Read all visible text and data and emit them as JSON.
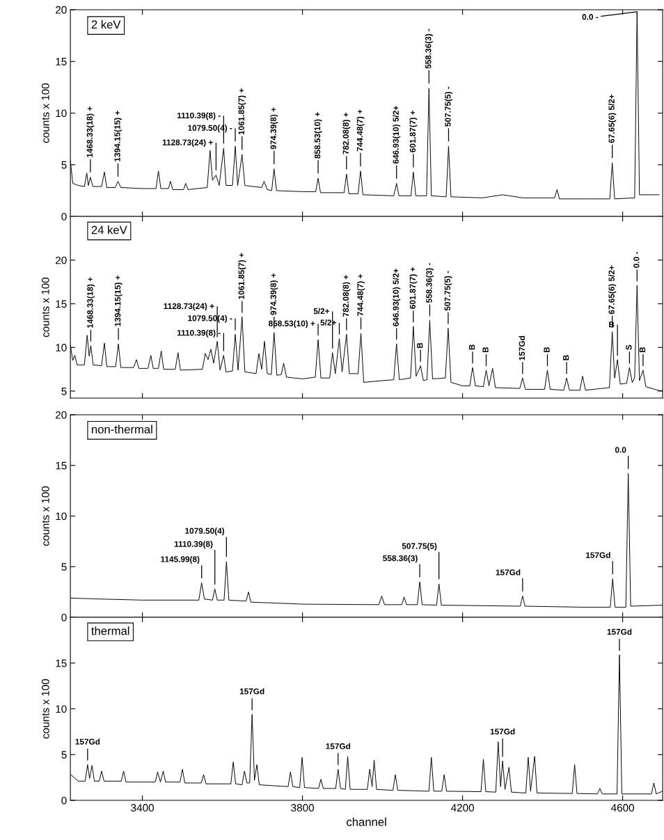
{
  "chart_data": [
    {
      "type": "line",
      "title": "2 keV",
      "ylabel": "counts x 100",
      "xlim": [
        3220,
        4700
      ],
      "ylim": [
        0,
        20
      ],
      "xticks": [
        3400,
        3800,
        4200,
        4600
      ],
      "yticks": [
        0,
        5,
        10,
        15,
        20
      ],
      "tick_labels": "y",
      "series": [
        {
          "color": "#000000",
          "x": [
            3220,
            3226,
            3240,
            3255,
            3261,
            3265,
            3270,
            3276,
            3298,
            3305,
            3311,
            3332,
            3339,
            3346,
            3400,
            3434,
            3440,
            3446,
            3465,
            3470,
            3476,
            3503,
            3508,
            3514,
            3562,
            3569,
            3575,
            3584,
            3592,
            3603,
            3609,
            3625,
            3632,
            3638,
            3649,
            3656,
            3698,
            3704,
            3712,
            3723,
            3729,
            3735,
            3800,
            3833,
            3839,
            3845,
            3904,
            3910,
            3916,
            3939,
            3945,
            3951,
            4028,
            4035,
            4041,
            4071,
            4077,
            4083,
            4110,
            4116,
            4122,
            4159,
            4165,
            4171,
            4250,
            4300,
            4350,
            4430,
            4436,
            4442,
            4520,
            4568,
            4574,
            4580,
            4630,
            4636,
            4642,
            4691
          ],
          "values": [
            5.4,
            3.2,
            3.0,
            2.9,
            4.2,
            3.0,
            3.8,
            2.9,
            2.9,
            4.3,
            2.8,
            2.8,
            3.4,
            2.8,
            2.7,
            2.7,
            4.4,
            2.7,
            2.7,
            3.4,
            2.6,
            2.6,
            3.2,
            2.6,
            2.8,
            6.4,
            3.5,
            4.0,
            3.0,
            6.6,
            3.0,
            3.0,
            6.8,
            3.0,
            6.0,
            3.0,
            2.8,
            3.4,
            2.6,
            2.5,
            4.6,
            2.5,
            2.4,
            2.4,
            3.7,
            2.3,
            2.3,
            4.1,
            2.2,
            2.2,
            4.4,
            2.1,
            2.0,
            3.2,
            2.0,
            2.0,
            4.3,
            2.0,
            2.0,
            12.4,
            2.0,
            1.9,
            6.8,
            1.9,
            1.8,
            2.1,
            1.8,
            1.8,
            2.6,
            1.7,
            1.7,
            1.7,
            5.2,
            1.7,
            1.8,
            19.8,
            2.1,
            2.1
          ]
        }
      ],
      "annotations": [
        {
          "text": "1468.33(18) +",
          "x": 3270,
          "y": 3.8
        },
        {
          "text": "1394.15(15) +",
          "x": 3339,
          "y": 3.4
        },
        {
          "text": "1128.73(24) +",
          "x": 3584,
          "y": 4.0
        },
        {
          "text": "1110.39(8) -",
          "x": 3603,
          "y": 6.6
        },
        {
          "text": "1079.50(4) -",
          "x": 3632,
          "y": 6.8
        },
        {
          "text": "1061.85(7) +",
          "x": 3649,
          "y": 6.0
        },
        {
          "text": "974.39(8) +",
          "x": 3729,
          "y": 4.6
        },
        {
          "text": "858.53(10) +",
          "x": 3839,
          "y": 3.7
        },
        {
          "text": "782.08(8) +",
          "x": 3910,
          "y": 4.1
        },
        {
          "text": "744.48(7) +",
          "x": 3945,
          "y": 4.4
        },
        {
          "text": "646.93(10) 5/2+",
          "x": 4035,
          "y": 3.2
        },
        {
          "text": "601.87(7) +",
          "x": 4077,
          "y": 4.3
        },
        {
          "text": "558.36(3) -",
          "x": 4116,
          "y": 12.4
        },
        {
          "text": "507.75(5) -",
          "x": 4165,
          "y": 6.8
        },
        {
          "text": "67.65(6) 5/2+",
          "x": 4574,
          "y": 5.2
        },
        {
          "text": "0.0 -",
          "x": 4636,
          "y": 19.8
        }
      ]
    },
    {
      "type": "line",
      "title": "24 keV",
      "ylabel": "counts x 100",
      "xlim": [
        3220,
        4700
      ],
      "ylim": [
        4.2,
        25
      ],
      "xticks": [
        3400,
        3800,
        4200,
        4600
      ],
      "yticks": [
        5,
        10,
        15,
        20
      ],
      "tick_labels": "y",
      "series": [
        {
          "color": "#000000",
          "x": [
            3220,
            3226,
            3231,
            3237,
            3255,
            3262,
            3267,
            3271,
            3277,
            3298,
            3305,
            3311,
            3333,
            3340,
            3346,
            3378,
            3385,
            3391,
            3414,
            3421,
            3427,
            3440,
            3447,
            3453,
            3482,
            3489,
            3495,
            3550,
            3557,
            3564,
            3571,
            3578,
            3587,
            3594,
            3603,
            3609,
            3625,
            3632,
            3639,
            3649,
            3656,
            3684,
            3691,
            3698,
            3705,
            3712,
            3722,
            3729,
            3736,
            3747,
            3753,
            3760,
            3800,
            3832,
            3839,
            3846,
            3868,
            3875,
            3882,
            3892,
            3899,
            3910,
            3917,
            3939,
            3946,
            3953,
            4000,
            4028,
            4035,
            4042,
            4070,
            4077,
            4084,
            4095,
            4102,
            4111,
            4118,
            4125,
            4157,
            4164,
            4171,
            4200,
            4218,
            4225,
            4232,
            4252,
            4259,
            4266,
            4275,
            4282,
            4343,
            4350,
            4357,
            4405,
            4412,
            4419,
            4453,
            4460,
            4467,
            4493,
            4500,
            4507,
            4567,
            4574,
            4580,
            4587,
            4594,
            4610,
            4617,
            4624,
            4630,
            4636,
            4642,
            4651,
            4658,
            4688,
            4700
          ],
          "values": [
            10.3,
            8.5,
            9.1,
            8.0,
            8.0,
            11.4,
            9.0,
            10.2,
            8.0,
            7.9,
            10.5,
            7.8,
            7.8,
            10.4,
            7.7,
            7.7,
            8.6,
            7.6,
            7.6,
            9.1,
            7.6,
            7.6,
            9.6,
            7.5,
            7.5,
            9.4,
            7.4,
            7.5,
            9.3,
            8.6,
            9.8,
            8.2,
            10.7,
            7.4,
            9.1,
            7.2,
            7.3,
            11.5,
            7.4,
            13.5,
            7.2,
            7.0,
            9.3,
            7.5,
            10.7,
            7.0,
            6.9,
            11.7,
            6.8,
            6.9,
            8.2,
            6.6,
            6.4,
            6.6,
            10.9,
            6.5,
            6.5,
            9.4,
            7.0,
            11.0,
            7.2,
            11.5,
            7.0,
            7.0,
            11.6,
            6.0,
            6.2,
            6.3,
            10.4,
            6.3,
            6.5,
            12.4,
            6.7,
            7.9,
            6.2,
            6.3,
            13.1,
            6.4,
            6.5,
            12.2,
            6.0,
            5.6,
            5.6,
            7.7,
            5.6,
            5.5,
            7.4,
            5.6,
            7.6,
            5.4,
            5.3,
            6.5,
            5.2,
            5.2,
            7.4,
            5.2,
            5.1,
            6.5,
            5.1,
            5.1,
            6.7,
            5.1,
            5.4,
            11.8,
            6.5,
            8.6,
            5.8,
            5.9,
            7.7,
            6.0,
            6.5,
            17.1,
            6.2,
            7.4,
            5.5,
            5.1,
            5.0
          ]
        }
      ],
      "annotations": [
        {
          "text": "1468.33(18) +",
          "x": 3271,
          "y": 10.2
        },
        {
          "text": "1394.15(15) +",
          "x": 3340,
          "y": 10.4
        },
        {
          "text": "1128.73(24) +",
          "x": 3587,
          "y": 10.7
        },
        {
          "text": "1110.39(8) -",
          "x": 3603,
          "y": 9.1
        },
        {
          "text": "1079.50(4) -",
          "x": 3632,
          "y": 11.5
        },
        {
          "text": "1061.85(7) +",
          "x": 3649,
          "y": 13.5
        },
        {
          "text": "974.39(8) +",
          "x": 3729,
          "y": 11.7
        },
        {
          "text": "858.53(10) +",
          "x": 3839,
          "y": 10.9
        },
        {
          "text": "5/2+",
          "x": 3875,
          "y": 9.4
        },
        {
          "text": "5/2+",
          "x": 3892,
          "y": 11.0
        },
        {
          "text": "782.08(8) +",
          "x": 3910,
          "y": 11.5
        },
        {
          "text": "744.48(7) +",
          "x": 3946,
          "y": 11.6
        },
        {
          "text": "646.93(10) 5/2+",
          "x": 4035,
          "y": 10.4
        },
        {
          "text": "601.87(7) +",
          "x": 4077,
          "y": 12.4
        },
        {
          "text": "B",
          "x": 4095,
          "y": 7.9
        },
        {
          "text": "558.36(3) -",
          "x": 4118,
          "y": 13.1
        },
        {
          "text": "507.75(5) -",
          "x": 4164,
          "y": 12.2
        },
        {
          "text": "B",
          "x": 4225,
          "y": 7.7
        },
        {
          "text": "B",
          "x": 4259,
          "y": 7.4
        },
        {
          "text": "157Gd",
          "x": 4350,
          "y": 6.5
        },
        {
          "text": "B",
          "x": 4412,
          "y": 7.4
        },
        {
          "text": "B",
          "x": 4460,
          "y": 6.5
        },
        {
          "text": "67.65(6) 5/2+",
          "x": 4574,
          "y": 11.8
        },
        {
          "text": "B",
          "x": 4587,
          "y": 8.6
        },
        {
          "text": "S",
          "x": 4617,
          "y": 7.7
        },
        {
          "text": "0.0 -",
          "x": 4636,
          "y": 17.1
        },
        {
          "text": "B",
          "x": 4651,
          "y": 7.4
        }
      ]
    },
    {
      "type": "line",
      "title": "non-thermal",
      "ylabel": "counts x 100",
      "xlim": [
        3220,
        4700
      ],
      "ylim": [
        0,
        20
      ],
      "xticks": [
        3400,
        3800,
        4200,
        4600
      ],
      "yticks": [
        0,
        5,
        10,
        15,
        20
      ],
      "tick_labels": "y",
      "series": [
        {
          "color": "#000000",
          "x": [
            3220,
            3300,
            3400,
            3541,
            3548,
            3555,
            3575,
            3581,
            3587,
            3604,
            3610,
            3616,
            3659,
            3665,
            3671,
            3800,
            3991,
            3998,
            4005,
            4048,
            4054,
            4060,
            4087,
            4093,
            4099,
            4135,
            4141,
            4147,
            4344,
            4350,
            4356,
            4500,
            4569,
            4575,
            4581,
            4608,
            4614,
            4620,
            4700
          ],
          "values": [
            1.9,
            1.8,
            1.7,
            1.7,
            3.4,
            1.8,
            1.7,
            2.8,
            1.7,
            1.7,
            5.5,
            1.7,
            1.6,
            2.5,
            1.5,
            1.3,
            1.25,
            2.1,
            1.25,
            1.25,
            2.0,
            1.25,
            1.25,
            3.5,
            1.25,
            1.2,
            3.3,
            1.2,
            1.1,
            2.1,
            1.1,
            1.0,
            1.0,
            3.8,
            1.0,
            1.0,
            14.2,
            1.1,
            1.2
          ]
        }
      ],
      "annotations": [
        {
          "text": "1145.99(8)",
          "x": 3548,
          "y": 3.4
        },
        {
          "text": "1110.39(8)",
          "x": 3581,
          "y": 2.8
        },
        {
          "text": "1079.50(4)",
          "x": 3610,
          "y": 5.5
        },
        {
          "text": "558.36(3)",
          "x": 4093,
          "y": 3.5
        },
        {
          "text": "507.75(5)",
          "x": 4141,
          "y": 3.3
        },
        {
          "text": "157Gd",
          "x": 4350,
          "y": 2.1
        },
        {
          "text": "157Gd",
          "x": 4575,
          "y": 3.8
        },
        {
          "text": "0.0",
          "x": 4614,
          "y": 14.2
        }
      ]
    },
    {
      "type": "line",
      "title": "thermal",
      "xlabel": "channel",
      "ylabel": "counts x 100",
      "xlim": [
        3220,
        4700
      ],
      "ylim": [
        0,
        20
      ],
      "xticks": [
        3400,
        3800,
        4200,
        4600
      ],
      "yticks": [
        0,
        5,
        10,
        15
      ],
      "series": [
        {
          "color": "#000000",
          "x": [
            3221,
            3240,
            3257,
            3263,
            3268,
            3274,
            3280,
            3292,
            3298,
            3304,
            3347,
            3353,
            3359,
            3432,
            3438,
            3445,
            3452,
            3458,
            3494,
            3500,
            3506,
            3547,
            3553,
            3559,
            3621,
            3627,
            3633,
            3649,
            3655,
            3661,
            3668,
            3674,
            3680,
            3686,
            3692,
            3764,
            3770,
            3776,
            3793,
            3799,
            3805,
            3840,
            3846,
            3852,
            3883,
            3889,
            3895,
            3907,
            3913,
            3919,
            3962,
            3968,
            3974,
            3979,
            3985,
            4026,
            4032,
            4038,
            4116,
            4122,
            4128,
            4148,
            4154,
            4160,
            4246,
            4252,
            4258,
            4283,
            4289,
            4295,
            4300,
            4306,
            4316,
            4322,
            4358,
            4364,
            4370,
            4380,
            4386,
            4474,
            4480,
            4486,
            4537,
            4543,
            4549,
            4586,
            4592,
            4598,
            4672,
            4678,
            4684,
            4700
          ],
          "values": [
            2.8,
            2.1,
            2.1,
            3.9,
            2.4,
            3.8,
            2.1,
            2.1,
            3.2,
            2.1,
            2.1,
            3.2,
            2.0,
            2.0,
            3.1,
            2.0,
            3.2,
            2.0,
            2.0,
            3.4,
            1.9,
            1.9,
            2.8,
            1.8,
            1.8,
            4.2,
            1.8,
            1.7,
            3.2,
            1.9,
            1.9,
            9.4,
            2.2,
            3.9,
            1.7,
            1.5,
            3.1,
            1.5,
            1.4,
            4.7,
            1.4,
            1.3,
            2.3,
            1.3,
            1.3,
            3.4,
            1.3,
            1.2,
            4.8,
            1.2,
            1.2,
            3.4,
            1.5,
            4.4,
            1.2,
            1.1,
            2.8,
            1.1,
            1.0,
            4.7,
            1.0,
            1.0,
            2.8,
            1.0,
            0.95,
            4.5,
            0.95,
            0.9,
            6.4,
            1.5,
            4.3,
            1.2,
            3.6,
            0.9,
            0.8,
            4.7,
            1.0,
            4.8,
            0.8,
            0.75,
            3.9,
            0.75,
            0.7,
            1.3,
            0.7,
            0.7,
            15.9,
            0.7,
            0.7,
            1.9,
            0.7,
            1.0
          ]
        }
      ],
      "annotations": [
        {
          "text": "157Gd",
          "x": 3263,
          "y": 3.9
        },
        {
          "text": "157Gd",
          "x": 3674,
          "y": 9.4
        },
        {
          "text": "157Gd",
          "x": 3889,
          "y": 3.4
        },
        {
          "text": "157Gd",
          "x": 4300,
          "y": 4.3
        },
        {
          "text": "157Gd",
          "x": 4592,
          "y": 15.9
        }
      ]
    }
  ]
}
